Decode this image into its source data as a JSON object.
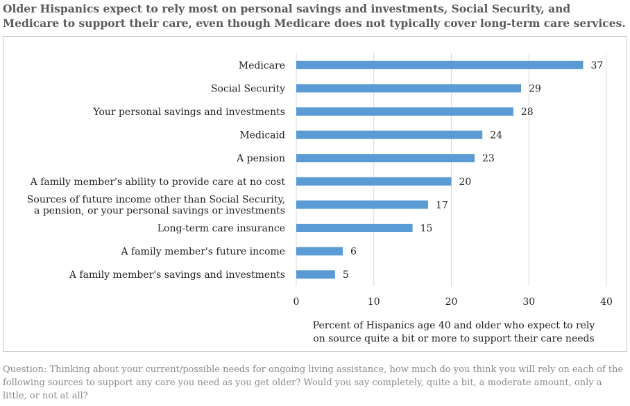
{
  "title": "Older Hispanics expect to rely most on personal savings and investments, Social Security, and Medicare to support their care, even though Medicare does not typically cover long-term care services.",
  "footnote": "Question: Thinking about your current/possible needs for ongoing living assistance, how much do you think you will rely on each of the following sources to support any care you need as you get older? Would you say completely, quite a bit, a moderate amount, only a little, or not at all?",
  "chart_data": {
    "type": "bar",
    "orientation": "horizontal",
    "categories": [
      [
        "Medicare"
      ],
      [
        "Social Security"
      ],
      [
        "Your personal savings and investments"
      ],
      [
        "Medicaid"
      ],
      [
        "A pension"
      ],
      [
        "A family member's ability to provide care at no cost"
      ],
      [
        "Sources of future income other than Social Security,",
        "a pension, or your personal savings or investments"
      ],
      [
        "Long-term care insurance"
      ],
      [
        "A family member's future income"
      ],
      [
        "A family member's savings and investments"
      ]
    ],
    "values": [
      37,
      29,
      28,
      24,
      23,
      20,
      17,
      15,
      6,
      5
    ],
    "xlim": [
      0,
      40
    ],
    "xticks": [
      0,
      10,
      20,
      30,
      40
    ],
    "xlabel": [
      "Percent of Hispanics age 40 and older who expect to rely",
      "on source quite a bit or more to support their care needs"
    ],
    "ylabel": "",
    "grid": true,
    "bar_color": "#5b9bd5",
    "grid_color": "#d9d9d9"
  }
}
